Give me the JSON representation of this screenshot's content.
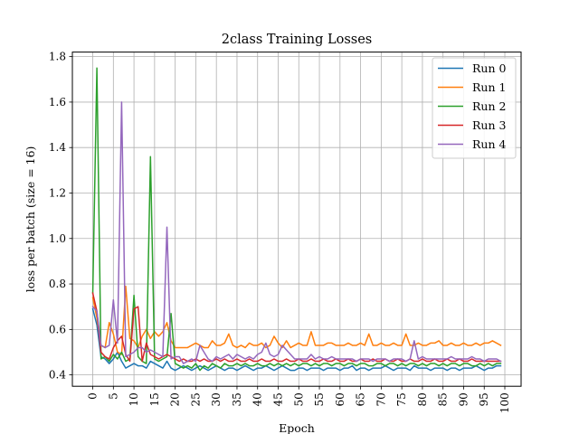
{
  "chart_data": {
    "type": "line",
    "title": "2class Training Losses",
    "xlabel": "Epoch",
    "ylabel": "loss per batch (size = 16)",
    "xlim": [
      -4.95,
      103.95
    ],
    "ylim": [
      0.35,
      1.82
    ],
    "x_ticks": [
      0,
      5,
      10,
      15,
      20,
      25,
      30,
      35,
      40,
      45,
      50,
      55,
      60,
      65,
      70,
      75,
      80,
      85,
      90,
      95,
      100
    ],
    "y_ticks": [
      0.4,
      0.6,
      0.8,
      1.0,
      1.2,
      1.4,
      1.6,
      1.8
    ],
    "y_tick_labels": [
      "0.4",
      "0.6",
      "0.8",
      "1.0",
      "1.2",
      "1.4",
      "1.6",
      "1.8"
    ],
    "grid": true,
    "legend_position": "top-right",
    "x": [
      0,
      1,
      2,
      3,
      4,
      5,
      6,
      7,
      8,
      9,
      10,
      11,
      12,
      13,
      14,
      15,
      16,
      17,
      18,
      19,
      20,
      21,
      22,
      23,
      24,
      25,
      26,
      27,
      28,
      29,
      30,
      31,
      32,
      33,
      34,
      35,
      36,
      37,
      38,
      39,
      40,
      41,
      42,
      43,
      44,
      45,
      46,
      47,
      48,
      49,
      50,
      51,
      52,
      53,
      54,
      55,
      56,
      57,
      58,
      59,
      60,
      61,
      62,
      63,
      64,
      65,
      66,
      67,
      68,
      69,
      70,
      71,
      72,
      73,
      74,
      75,
      76,
      77,
      78,
      79,
      80,
      81,
      82,
      83,
      84,
      85,
      86,
      87,
      88,
      89,
      90,
      91,
      92,
      93,
      94,
      95,
      96,
      97,
      98,
      99
    ],
    "series": [
      {
        "name": "Run 0",
        "color": "#1f77b4",
        "values": [
          0.69,
          0.62,
          0.48,
          0.47,
          0.45,
          0.47,
          0.5,
          0.46,
          0.43,
          0.44,
          0.45,
          0.44,
          0.44,
          0.43,
          0.46,
          0.45,
          0.44,
          0.43,
          0.46,
          0.43,
          0.42,
          0.43,
          0.44,
          0.43,
          0.42,
          0.43,
          0.44,
          0.43,
          0.42,
          0.43,
          0.44,
          0.43,
          0.42,
          0.43,
          0.43,
          0.42,
          0.43,
          0.44,
          0.43,
          0.42,
          0.43,
          0.43,
          0.44,
          0.43,
          0.42,
          0.43,
          0.44,
          0.43,
          0.42,
          0.42,
          0.43,
          0.43,
          0.42,
          0.43,
          0.43,
          0.43,
          0.42,
          0.43,
          0.43,
          0.43,
          0.42,
          0.43,
          0.43,
          0.44,
          0.42,
          0.43,
          0.43,
          0.42,
          0.43,
          0.43,
          0.43,
          0.44,
          0.43,
          0.42,
          0.43,
          0.43,
          0.43,
          0.42,
          0.44,
          0.43,
          0.43,
          0.43,
          0.42,
          0.43,
          0.43,
          0.43,
          0.42,
          0.43,
          0.43,
          0.42,
          0.43,
          0.43,
          0.43,
          0.44,
          0.43,
          0.42,
          0.43,
          0.43,
          0.44,
          0.44
        ]
      },
      {
        "name": "Run 1",
        "color": "#ff7f0e",
        "values": [
          0.74,
          0.65,
          0.53,
          0.52,
          0.63,
          0.58,
          0.5,
          0.49,
          0.79,
          0.56,
          0.55,
          0.52,
          0.57,
          0.6,
          0.56,
          0.59,
          0.57,
          0.59,
          0.63,
          0.55,
          0.52,
          0.52,
          0.52,
          0.52,
          0.53,
          0.54,
          0.53,
          0.52,
          0.52,
          0.55,
          0.53,
          0.53,
          0.54,
          0.58,
          0.53,
          0.52,
          0.53,
          0.52,
          0.54,
          0.53,
          0.53,
          0.54,
          0.52,
          0.53,
          0.57,
          0.54,
          0.52,
          0.55,
          0.52,
          0.53,
          0.54,
          0.53,
          0.53,
          0.59,
          0.53,
          0.53,
          0.53,
          0.54,
          0.54,
          0.53,
          0.53,
          0.53,
          0.54,
          0.53,
          0.53,
          0.54,
          0.53,
          0.58,
          0.53,
          0.53,
          0.54,
          0.53,
          0.53,
          0.54,
          0.53,
          0.53,
          0.58,
          0.53,
          0.53,
          0.54,
          0.53,
          0.53,
          0.54,
          0.54,
          0.55,
          0.53,
          0.53,
          0.54,
          0.53,
          0.53,
          0.54,
          0.53,
          0.53,
          0.54,
          0.53,
          0.54,
          0.54,
          0.55,
          0.54,
          0.53
        ]
      },
      {
        "name": "Run 2",
        "color": "#2ca02c",
        "values": [
          0.76,
          1.75,
          0.47,
          0.48,
          0.46,
          0.49,
          0.47,
          0.5,
          0.46,
          0.47,
          0.75,
          0.48,
          0.46,
          0.45,
          1.36,
          0.47,
          0.46,
          0.47,
          0.48,
          0.67,
          0.45,
          0.44,
          0.43,
          0.44,
          0.43,
          0.45,
          0.42,
          0.44,
          0.43,
          0.45,
          0.44,
          0.43,
          0.45,
          0.44,
          0.44,
          0.45,
          0.44,
          0.45,
          0.44,
          0.44,
          0.45,
          0.44,
          0.44,
          0.45,
          0.44,
          0.45,
          0.44,
          0.45,
          0.44,
          0.45,
          0.44,
          0.45,
          0.45,
          0.44,
          0.45,
          0.44,
          0.45,
          0.45,
          0.44,
          0.45,
          0.45,
          0.44,
          0.45,
          0.45,
          0.44,
          0.45,
          0.45,
          0.44,
          0.44,
          0.45,
          0.45,
          0.44,
          0.45,
          0.45,
          0.44,
          0.45,
          0.44,
          0.45,
          0.45,
          0.44,
          0.45,
          0.44,
          0.45,
          0.45,
          0.44,
          0.45,
          0.44,
          0.45,
          0.45,
          0.44,
          0.45,
          0.45,
          0.44,
          0.44,
          0.45,
          0.44,
          0.45,
          0.44,
          0.45,
          0.45
        ]
      },
      {
        "name": "Run 3",
        "color": "#d62728",
        "values": [
          0.76,
          0.68,
          0.5,
          0.48,
          0.47,
          0.52,
          0.55,
          0.57,
          0.49,
          0.46,
          0.69,
          0.7,
          0.46,
          0.54,
          0.49,
          0.48,
          0.47,
          0.48,
          0.49,
          0.48,
          0.47,
          0.46,
          0.47,
          0.46,
          0.46,
          0.47,
          0.46,
          0.47,
          0.46,
          0.46,
          0.47,
          0.46,
          0.47,
          0.46,
          0.46,
          0.47,
          0.46,
          0.46,
          0.47,
          0.46,
          0.46,
          0.47,
          0.46,
          0.46,
          0.47,
          0.46,
          0.46,
          0.47,
          0.46,
          0.46,
          0.47,
          0.46,
          0.46,
          0.47,
          0.46,
          0.46,
          0.47,
          0.46,
          0.46,
          0.47,
          0.46,
          0.46,
          0.47,
          0.46,
          0.46,
          0.47,
          0.46,
          0.46,
          0.47,
          0.46,
          0.46,
          0.47,
          0.46,
          0.46,
          0.47,
          0.46,
          0.46,
          0.47,
          0.46,
          0.46,
          0.47,
          0.46,
          0.46,
          0.47,
          0.46,
          0.46,
          0.47,
          0.46,
          0.46,
          0.47,
          0.46,
          0.46,
          0.47,
          0.46,
          0.46,
          0.46,
          0.46,
          0.46,
          0.46,
          0.46
        ]
      },
      {
        "name": "Run 4",
        "color": "#9467bd",
        "values": [
          0.7,
          0.68,
          0.53,
          0.52,
          0.53,
          0.73,
          0.54,
          1.6,
          0.48,
          0.49,
          0.5,
          0.52,
          0.52,
          0.5,
          0.51,
          0.5,
          0.49,
          0.48,
          1.05,
          0.47,
          0.48,
          0.48,
          0.45,
          0.46,
          0.47,
          0.46,
          0.53,
          0.5,
          0.47,
          0.46,
          0.48,
          0.47,
          0.48,
          0.49,
          0.47,
          0.49,
          0.48,
          0.47,
          0.48,
          0.47,
          0.49,
          0.5,
          0.54,
          0.49,
          0.48,
          0.49,
          0.53,
          0.51,
          0.49,
          0.47,
          0.47,
          0.47,
          0.47,
          0.49,
          0.47,
          0.48,
          0.47,
          0.47,
          0.48,
          0.47,
          0.47,
          0.47,
          0.47,
          0.47,
          0.46,
          0.47,
          0.47,
          0.47,
          0.46,
          0.47,
          0.47,
          0.47,
          0.46,
          0.47,
          0.47,
          0.47,
          0.46,
          0.47,
          0.55,
          0.47,
          0.48,
          0.47,
          0.47,
          0.47,
          0.47,
          0.47,
          0.47,
          0.48,
          0.47,
          0.47,
          0.47,
          0.47,
          0.48,
          0.47,
          0.47,
          0.46,
          0.47,
          0.47,
          0.47,
          0.46
        ]
      }
    ]
  }
}
